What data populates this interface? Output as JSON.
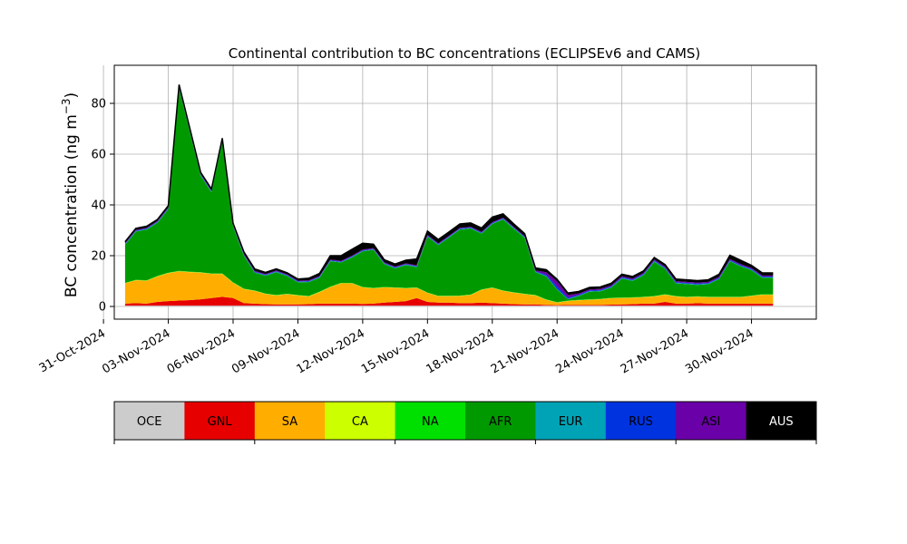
{
  "chart_data": {
    "type": "area",
    "title": "Continental contribution to BC concentrations (ECLIPSEv6 and CAMS)",
    "xlabel": "",
    "ylabel": "BC concentration (ng m$^{-3}$)",
    "ylabel_main": "BC concentration (ng m",
    "ylabel_sup": "−3",
    "ylabel_close": ")",
    "ylim": [
      -5,
      95
    ],
    "yticks": [
      0,
      20,
      40,
      60,
      80
    ],
    "x_start": "2024-11-01",
    "x_end": "2024-12-01",
    "xlim": [
      "2024-10-31T12:00",
      "2024-12-03T00:00"
    ],
    "xticks": [
      "31-Oct-2024",
      "03-Nov-2024",
      "06-Nov-2024",
      "09-Nov-2024",
      "12-Nov-2024",
      "15-Nov-2024",
      "18-Nov-2024",
      "21-Nov-2024",
      "24-Nov-2024",
      "27-Nov-2024",
      "30-Nov-2024"
    ],
    "grid": true,
    "legend_placement": "below",
    "series": [
      {
        "name": "OCE",
        "color": "#cccccc",
        "values": [
          0.3,
          0.3,
          0.3,
          0.3,
          0.3,
          0.3,
          0.3,
          0.3,
          0.3,
          0.3,
          0.3,
          0.3,
          0.3,
          0.3,
          0.3,
          0.3,
          0.3,
          0.3,
          0.3,
          0.3,
          0.3,
          0.3,
          0.3,
          0.3,
          0.3,
          0.3,
          0.3,
          0.3,
          0.3,
          0.3,
          0.3,
          0.3,
          0.3,
          0.3,
          0.3,
          0.3,
          0.3,
          0.3,
          0.3,
          0.3,
          0.3,
          0.3,
          0.3,
          0.3,
          0.3,
          0.3,
          0.3,
          0.3,
          0.3,
          0.3,
          0.3,
          0.3,
          0.3,
          0.3,
          0.3,
          0.3,
          0.3,
          0.3,
          0.3,
          0.3,
          0.3
        ]
      },
      {
        "name": "GNL",
        "color": "#e60000",
        "values": [
          0.8,
          1.0,
          0.8,
          1.5,
          1.8,
          2.0,
          2.2,
          2.5,
          3.0,
          3.5,
          3.0,
          1.0,
          0.8,
          0.6,
          0.5,
          0.5,
          0.5,
          0.6,
          0.8,
          0.8,
          0.8,
          0.8,
          0.7,
          0.8,
          1.2,
          1.5,
          1.8,
          3.0,
          1.5,
          1.2,
          1.2,
          1.0,
          1.0,
          1.2,
          1.0,
          0.8,
          0.6,
          0.5,
          0.5,
          0.3,
          0.2,
          0.3,
          0.3,
          0.3,
          0.3,
          0.4,
          0.5,
          0.6,
          0.8,
          0.8,
          1.5,
          0.8,
          0.8,
          1.0,
          0.8,
          0.8,
          0.8,
          0.8,
          0.8,
          0.8,
          0.8
        ]
      },
      {
        "name": "SA",
        "color": "#ffae00",
        "values": [
          8.0,
          9.0,
          9.0,
          10.0,
          11.0,
          11.5,
          11.0,
          10.5,
          9.5,
          9.0,
          6.0,
          5.5,
          5.0,
          4.0,
          3.5,
          4.0,
          3.5,
          3.0,
          4.5,
          6.5,
          8.0,
          8.0,
          6.5,
          6.0,
          6.0,
          5.5,
          5.0,
          4.0,
          3.5,
          2.5,
          2.5,
          2.8,
          3.2,
          5.0,
          6.0,
          5.0,
          4.5,
          4.0,
          3.5,
          2.0,
          1.0,
          1.5,
          1.8,
          2.0,
          2.2,
          2.5,
          2.5,
          2.5,
          2.5,
          2.8,
          2.8,
          2.8,
          2.5,
          2.5,
          2.5,
          2.5,
          2.5,
          2.5,
          3.0,
          3.5,
          3.5
        ]
      },
      {
        "name": "CA",
        "color": "#ccff00",
        "values": [
          0.1,
          0.1,
          0.1,
          0.1,
          0.1,
          0.1,
          0.1,
          0.1,
          0.1,
          0.1,
          0.1,
          0.1,
          0.1,
          0.1,
          0.1,
          0.1,
          0.1,
          0.1,
          0.1,
          0.1,
          0.1,
          0.1,
          0.1,
          0.1,
          0.1,
          0.1,
          0.1,
          0.1,
          0.1,
          0.1,
          0.1,
          0.1,
          0.1,
          0.1,
          0.1,
          0.1,
          0.1,
          0.1,
          0.1,
          0.1,
          0.1,
          0.1,
          0.1,
          0.1,
          0.1,
          0.1,
          0.1,
          0.1,
          0.1,
          0.1,
          0.1,
          0.1,
          0.1,
          0.1,
          0.1,
          0.1,
          0.1,
          0.1,
          0.1,
          0.1,
          0.1
        ]
      },
      {
        "name": "NA",
        "color": "#00e000",
        "values": [
          0.1,
          0.1,
          0.1,
          0.1,
          0.1,
          0.1,
          0.1,
          0.1,
          0.1,
          0.1,
          0.1,
          0.1,
          0.1,
          0.1,
          0.1,
          0.1,
          0.1,
          0.1,
          0.1,
          0.1,
          0.1,
          0.1,
          0.1,
          0.1,
          0.1,
          0.1,
          0.1,
          0.1,
          0.1,
          0.1,
          0.1,
          0.1,
          0.1,
          0.1,
          0.1,
          0.1,
          0.1,
          0.1,
          0.1,
          0.1,
          0.1,
          0.1,
          0.1,
          0.1,
          0.1,
          0.1,
          0.1,
          0.1,
          0.1,
          0.1,
          0.1,
          0.1,
          0.1,
          0.1,
          0.1,
          0.1,
          0.1,
          0.1,
          0.1,
          0.1,
          0.1
        ]
      },
      {
        "name": "AFR",
        "color": "#009a00",
        "values": [
          15.0,
          19.0,
          20.0,
          21.0,
          25.0,
          72.0,
          55.0,
          38.0,
          32.0,
          52.0,
          22.0,
          13.0,
          7.0,
          7.0,
          9.0,
          7.0,
          5.0,
          5.5,
          5.5,
          10.0,
          8.0,
          10.0,
          14.0,
          15.0,
          9.0,
          7.5,
          9.0,
          8.0,
          22.0,
          20.0,
          23.0,
          26.0,
          26.0,
          22.0,
          25.0,
          28.0,
          25.0,
          22.0,
          9.0,
          9.0,
          5.0,
          0.5,
          1.5,
          3.0,
          3.0,
          4.0,
          7.5,
          6.5,
          8.5,
          13.5,
          10.0,
          5.0,
          5.0,
          4.5,
          5.0,
          7.0,
          14.0,
          12.0,
          10.0,
          6.5,
          6.5
        ]
      },
      {
        "name": "EUR",
        "color": "#00a3b5",
        "values": [
          0.2,
          0.2,
          0.2,
          0.2,
          0.2,
          0.2,
          0.2,
          0.2,
          0.2,
          0.2,
          0.2,
          0.2,
          0.2,
          0.2,
          0.2,
          0.2,
          0.2,
          0.2,
          0.2,
          0.2,
          0.2,
          0.2,
          0.2,
          0.2,
          0.2,
          0.2,
          0.2,
          0.2,
          0.2,
          0.2,
          0.2,
          0.2,
          0.2,
          0.2,
          0.2,
          0.2,
          0.2,
          0.2,
          0.2,
          0.2,
          0.2,
          0.2,
          0.2,
          0.2,
          0.2,
          0.2,
          0.2,
          0.2,
          0.2,
          0.2,
          0.2,
          0.2,
          0.2,
          0.2,
          0.2,
          0.2,
          0.2,
          0.2,
          0.2,
          0.2,
          0.2
        ]
      },
      {
        "name": "RUS",
        "color": "#0033e0",
        "values": [
          0.2,
          0.2,
          0.2,
          0.2,
          0.2,
          0.2,
          0.2,
          0.2,
          0.2,
          0.2,
          0.2,
          0.2,
          0.2,
          0.2,
          0.2,
          0.2,
          0.2,
          0.2,
          0.2,
          0.2,
          0.2,
          0.2,
          0.2,
          0.2,
          0.2,
          0.2,
          0.2,
          0.2,
          0.2,
          0.2,
          0.2,
          0.2,
          0.2,
          0.2,
          0.2,
          0.2,
          0.2,
          0.2,
          0.2,
          0.5,
          1.0,
          0.5,
          0.3,
          0.3,
          0.3,
          0.3,
          0.3,
          0.3,
          0.3,
          0.3,
          0.3,
          0.3,
          0.3,
          0.3,
          0.3,
          0.3,
          0.3,
          0.3,
          0.3,
          0.3,
          0.3
        ]
      },
      {
        "name": "ASI",
        "color": "#6a00a8",
        "values": [
          0.3,
          0.3,
          0.3,
          0.3,
          0.3,
          0.3,
          0.3,
          0.3,
          0.3,
          0.3,
          0.3,
          0.3,
          0.3,
          0.3,
          0.3,
          0.3,
          0.3,
          0.3,
          0.3,
          0.3,
          0.3,
          0.3,
          0.3,
          0.3,
          0.3,
          0.3,
          0.3,
          0.3,
          0.3,
          0.3,
          0.3,
          0.3,
          0.3,
          0.3,
          0.3,
          0.3,
          0.3,
          0.3,
          0.3,
          1.0,
          2.0,
          1.0,
          0.5,
          0.4,
          0.4,
          0.4,
          0.4,
          0.4,
          0.4,
          0.4,
          0.4,
          0.4,
          0.4,
          0.4,
          0.4,
          0.4,
          0.4,
          0.4,
          0.4,
          0.4,
          0.4
        ]
      },
      {
        "name": "AUS",
        "color": "#000000",
        "values": [
          0.5,
          0.6,
          0.6,
          0.6,
          0.7,
          0.7,
          0.7,
          0.6,
          0.6,
          0.6,
          0.6,
          0.8,
          0.8,
          0.6,
          0.6,
          0.6,
          0.6,
          0.8,
          1.0,
          1.5,
          2.0,
          2.5,
          2.5,
          1.5,
          1.0,
          1.0,
          1.2,
          2.5,
          1.5,
          1.5,
          1.5,
          1.5,
          1.5,
          1.5,
          2.0,
          1.5,
          1.2,
          1.0,
          1.0,
          1.0,
          0.8,
          0.8,
          0.8,
          0.8,
          0.8,
          0.8,
          0.8,
          0.8,
          0.8,
          0.8,
          0.8,
          0.8,
          0.8,
          0.8,
          0.8,
          1.0,
          1.5,
          1.5,
          1.0,
          1.0,
          1.0
        ]
      }
    ]
  }
}
